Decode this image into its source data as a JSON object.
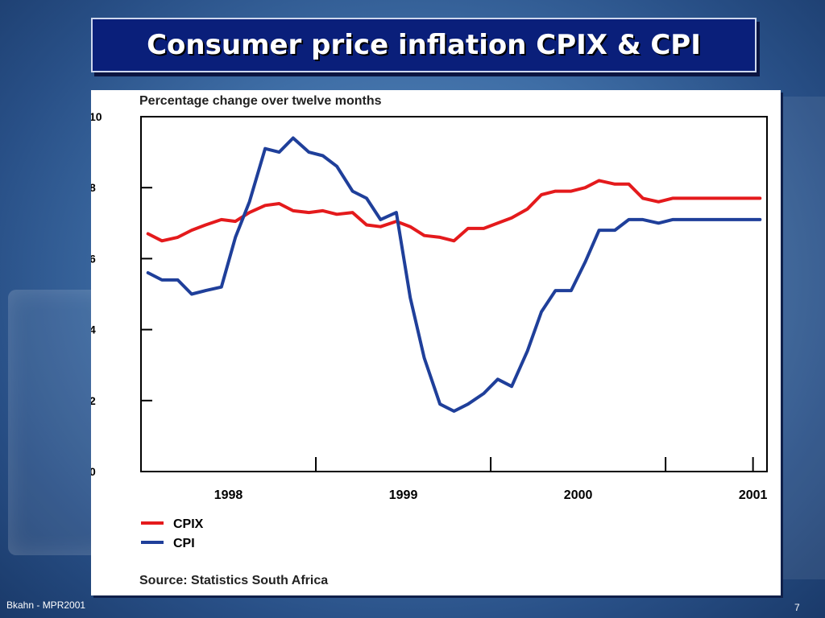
{
  "slide": {
    "title": "Consumer price inflation CPIX & CPI",
    "footer_left": "Bkahn - MPR2001",
    "page_number": "7"
  },
  "colors": {
    "cpix": "#e41a1c",
    "cpi": "#1f3f9a",
    "title_bg": "#0a1f7a"
  },
  "chart_data": {
    "type": "line",
    "title": "Percentage change over twelve months",
    "xlabel": "",
    "ylabel": "",
    "ylim": [
      0,
      10
    ],
    "y_ticks": [
      "0",
      "2",
      "4",
      "6",
      "8",
      "10"
    ],
    "x_ticks": [
      "1998",
      "1999",
      "2000",
      "2001"
    ],
    "x_labels_pos": [
      1998.0,
      1999.0,
      2000.0,
      2001.0
    ],
    "x_divider_pos": [
      1998.5,
      1999.5,
      2000.5
    ],
    "xlim": [
      1997.5,
      2001.08
    ],
    "grid": false,
    "legend_position": "bottom-left",
    "source": "Source:  Statistics South Africa",
    "series": [
      {
        "name": "CPIX",
        "color": "#e41a1c",
        "x": [
          1997.54,
          1997.62,
          1997.71,
          1997.79,
          1997.87,
          1997.96,
          1998.04,
          1998.12,
          1998.21,
          1998.29,
          1998.37,
          1998.46,
          1998.54,
          1998.62,
          1998.71,
          1998.79,
          1998.87,
          1998.96,
          1999.04,
          1999.12,
          1999.21,
          1999.29,
          1999.37,
          1999.46,
          1999.54,
          1999.62,
          1999.71,
          1999.79,
          1999.87,
          1999.96,
          2000.04,
          2000.12,
          2000.21,
          2000.29,
          2000.37,
          2000.46,
          2000.54,
          2000.62,
          2000.71,
          2000.79,
          2001.04
        ],
        "values": [
          6.7,
          6.5,
          6.6,
          6.8,
          6.95,
          7.1,
          7.05,
          7.3,
          7.5,
          7.55,
          7.35,
          7.3,
          7.35,
          7.25,
          7.3,
          6.95,
          6.9,
          7.05,
          6.9,
          6.65,
          6.6,
          6.5,
          6.85,
          6.85,
          7.0,
          7.15,
          7.4,
          7.8,
          7.9,
          7.9,
          8.0,
          8.2,
          8.1,
          8.1,
          7.7,
          7.6,
          7.7,
          7.7,
          7.7,
          7.7,
          7.7
        ]
      },
      {
        "name": "CPI",
        "color": "#1f3f9a",
        "x": [
          1997.54,
          1997.62,
          1997.71,
          1997.79,
          1997.87,
          1997.96,
          1998.04,
          1998.12,
          1998.21,
          1998.29,
          1998.37,
          1998.46,
          1998.54,
          1998.62,
          1998.71,
          1998.79,
          1998.87,
          1998.96,
          1999.04,
          1999.12,
          1999.21,
          1999.29,
          1999.37,
          1999.46,
          1999.54,
          1999.62,
          1999.71,
          1999.79,
          1999.87,
          1999.96,
          2000.04,
          2000.12,
          2000.21,
          2000.29,
          2000.37,
          2000.46,
          2000.54,
          2000.62,
          2000.71,
          2000.79,
          2001.04
        ],
        "values": [
          5.6,
          5.4,
          5.4,
          5.0,
          5.1,
          5.2,
          6.6,
          7.6,
          9.1,
          9.0,
          9.4,
          9.0,
          8.9,
          8.6,
          7.9,
          7.7,
          7.1,
          7.3,
          4.9,
          3.2,
          1.9,
          1.7,
          1.9,
          2.2,
          2.6,
          2.4,
          3.4,
          4.5,
          5.1,
          5.1,
          5.9,
          6.8,
          6.8,
          7.1,
          7.1,
          7.0,
          7.1,
          7.1,
          7.1,
          7.1,
          7.1
        ]
      }
    ]
  }
}
